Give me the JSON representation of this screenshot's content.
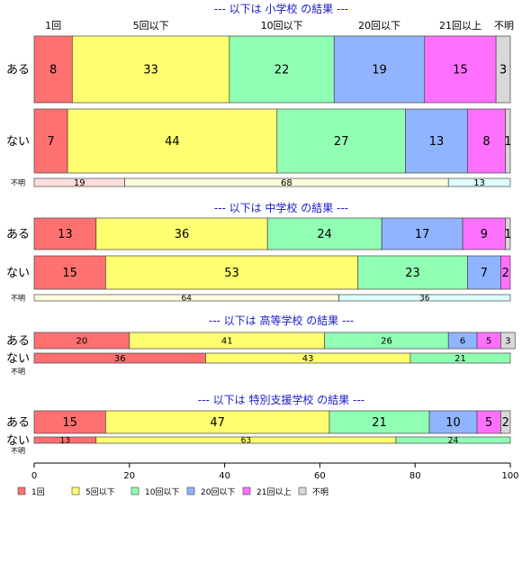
{
  "chart_data": {
    "type": "bar",
    "orientation": "horizontal",
    "stacked": "percent",
    "categories": [
      "1回",
      "5回以下",
      "10回以下",
      "20回以下",
      "21回以上",
      "不明"
    ],
    "colors": [
      "#ff7070",
      "#ffff70",
      "#90ffb4",
      "#90b4ff",
      "#ff70ff",
      "#d8d8d8"
    ],
    "xlim": [
      0,
      100
    ],
    "xticks": [
      0,
      20,
      40,
      60,
      80,
      100
    ],
    "panels": [
      {
        "title": "--- 以下は 小学校 の結果 ---",
        "rows": [
          {
            "label": "ある",
            "values": [
              8,
              33,
              22,
              19,
              15,
              3
            ]
          },
          {
            "label": "ない",
            "values": [
              7,
              44,
              27,
              13,
              8,
              1
            ]
          },
          {
            "label": "不明",
            "values": [
              19,
              68,
              0,
              13,
              0,
              0
            ]
          }
        ]
      },
      {
        "title": "--- 以下は 中学校 の結果 ---",
        "rows": [
          {
            "label": "ある",
            "values": [
              13,
              36,
              24,
              17,
              9,
              1
            ]
          },
          {
            "label": "ない",
            "values": [
              15,
              53,
              23,
              7,
              2,
              0
            ]
          },
          {
            "label": "不明",
            "values": [
              0,
              64,
              0,
              36,
              0,
              0
            ]
          }
        ]
      },
      {
        "title": "--- 以下は 高等学校 の結果 ---",
        "rows": [
          {
            "label": "ある",
            "values": [
              20,
              41,
              26,
              6,
              5,
              3
            ]
          },
          {
            "label": "ない",
            "values": [
              36,
              43,
              21,
              0,
              0,
              0
            ]
          },
          {
            "label": "不明",
            "values": []
          }
        ]
      },
      {
        "title": "--- 以下は 特別支援学校 の結果 ---",
        "rows": [
          {
            "label": "ある",
            "values": [
              15,
              47,
              21,
              10,
              5,
              2
            ]
          },
          {
            "label": "ない",
            "values": [
              13,
              63,
              24,
              0,
              0,
              0
            ]
          },
          {
            "label": "不明",
            "values": []
          }
        ]
      }
    ]
  }
}
